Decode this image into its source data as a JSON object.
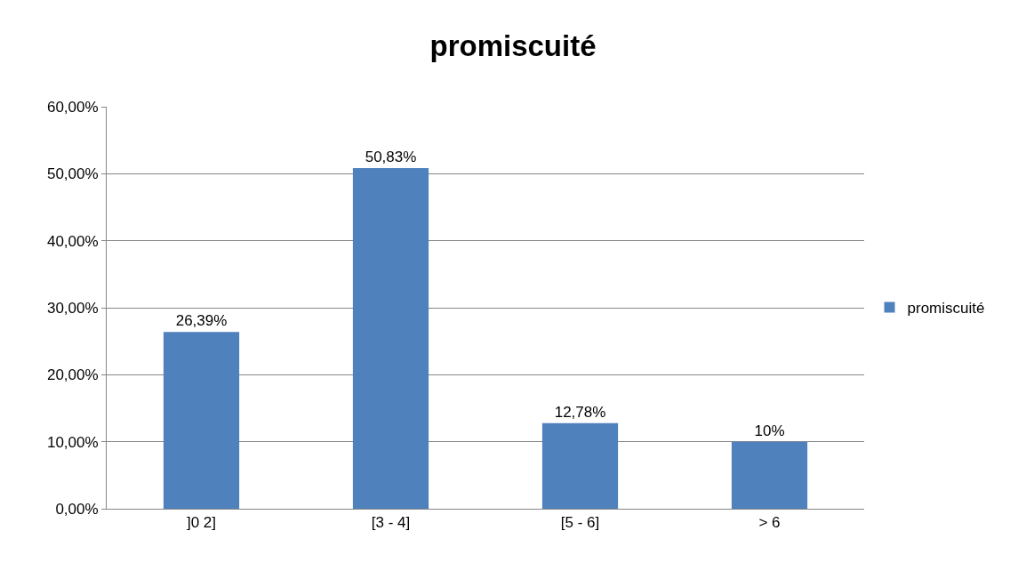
{
  "chart_data": {
    "type": "bar",
    "title": "promiscuité",
    "categories": [
      "]0 2]",
      "[3 - 4]",
      "[5 - 6]",
      "> 6"
    ],
    "series": [
      {
        "name": "promiscuité",
        "color": "#4f81bd",
        "values": [
          26.39,
          50.83,
          12.78,
          10
        ],
        "value_labels": [
          "26,39%",
          "50,83%",
          "12,78%",
          "10%"
        ]
      }
    ],
    "ylim": [
      0,
      60
    ],
    "yticks": [
      {
        "value": 0,
        "label": "0,00%"
      },
      {
        "value": 10,
        "label": "10,00%"
      },
      {
        "value": 20,
        "label": "20,00%"
      },
      {
        "value": 30,
        "label": "30,00%"
      },
      {
        "value": 40,
        "label": "40,00%"
      },
      {
        "value": 50,
        "label": "50,00%"
      },
      {
        "value": 60,
        "label": "60,00%"
      }
    ],
    "grid": "y",
    "legend": "right"
  }
}
